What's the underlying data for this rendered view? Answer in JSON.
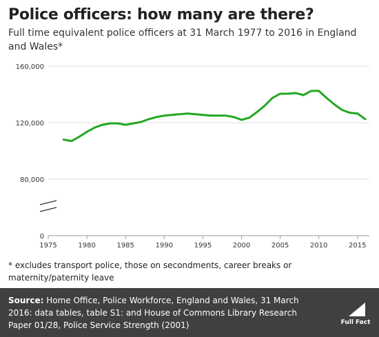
{
  "title": "Police officers: how many are there?",
  "subtitle": "Full time equivalent police officers at 31 March 1977 to 2016 in England and Wales*",
  "footnote": "* excludes transport police, those on secondments, career breaks or maternity/paternity leave",
  "source": {
    "lead": "Source:",
    "text": " Home Office, Police Workforce, England and Wales, 31 March 2016: data tables, table S1: and House of Commons Library Research Paper 01/28, Police Service Strength (2001)"
  },
  "logo_text": "Full Fact",
  "colors": {
    "line": "#22a722",
    "footer_bg": "#404040",
    "grid": "#dddddd"
  },
  "chart_data": {
    "type": "line",
    "title": "",
    "xlabel": "",
    "ylabel": "",
    "xlim": [
      1975,
      2016
    ],
    "ylim": [
      0,
      160000
    ],
    "y_axis_break": true,
    "x_ticks": [
      1975,
      1980,
      1985,
      1990,
      1995,
      2000,
      2005,
      2010,
      2015
    ],
    "y_ticks": [
      0,
      80000,
      120000,
      160000
    ],
    "y_tick_labels": [
      "0",
      "80,000",
      "120,000",
      "160,000"
    ],
    "grid": "horizontal",
    "series": [
      {
        "color": "#22a722",
        "x": [
          1977,
          1978,
          1979,
          1980,
          1981,
          1982,
          1983,
          1984,
          1985,
          1986,
          1987,
          1988,
          1989,
          1990,
          1991,
          1992,
          1993,
          1994,
          1995,
          1996,
          1997,
          1998,
          1999,
          2000,
          2001,
          2002,
          2003,
          2004,
          2005,
          2006,
          2007,
          2008,
          2009,
          2010,
          2011,
          2012,
          2013,
          2014,
          2015,
          2016
        ],
        "y": [
          108000,
          107000,
          110000,
          113500,
          116500,
          118500,
          119500,
          119500,
          118500,
          119500,
          120500,
          122500,
          124000,
          125000,
          125500,
          126000,
          126500,
          126000,
          125500,
          125000,
          125000,
          125000,
          124000,
          122000,
          123500,
          127500,
          132000,
          137500,
          140500,
          140500,
          141000,
          139500,
          142500,
          142500,
          137500,
          133000,
          129000,
          127000,
          126500,
          122500
        ]
      }
    ]
  }
}
